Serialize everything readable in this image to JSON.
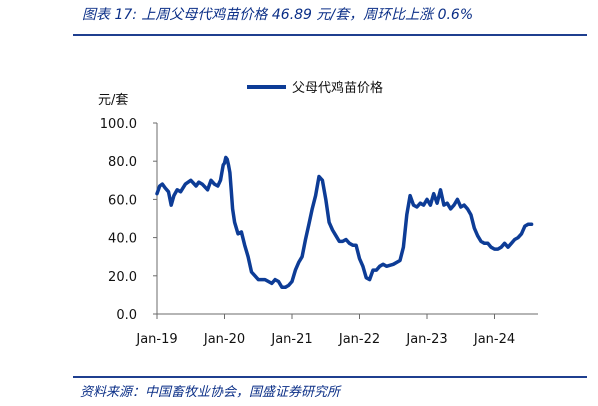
{
  "header": {
    "title": "图表 17: 上周父母代鸡苗价格 46.89 元/套，周环比上涨 0.6%"
  },
  "footer": {
    "source": "资料来源：中国畜牧业协会，国盛证券研究所"
  },
  "chart_data": {
    "type": "line",
    "title": "",
    "ylabel": "元/套",
    "xlabel": "",
    "ylim": [
      0,
      100
    ],
    "yticks": [
      "0.0",
      "20.0",
      "40.0",
      "60.0",
      "80.0",
      "100.0"
    ],
    "xticks": [
      "Jan-19",
      "Jan-20",
      "Jan-21",
      "Jan-22",
      "Jan-23",
      "Jan-24"
    ],
    "grid": false,
    "legend_position": "top-center",
    "line_color": "#0d3c96",
    "series": [
      {
        "name": "父母代鸡苗价格",
        "x": [
          2019.0,
          2019.04,
          2019.08,
          2019.12,
          2019.17,
          2019.21,
          2019.25,
          2019.3,
          2019.35,
          2019.42,
          2019.5,
          2019.58,
          2019.62,
          2019.67,
          2019.75,
          2019.8,
          2019.85,
          2019.9,
          2019.94,
          2019.98,
          2020.0,
          2020.02,
          2020.04,
          2020.06,
          2020.08,
          2020.1,
          2020.12,
          2020.15,
          2020.2,
          2020.25,
          2020.3,
          2020.35,
          2020.4,
          2020.5,
          2020.6,
          2020.7,
          2020.75,
          2020.8,
          2020.85,
          2020.9,
          2020.95,
          2021.0,
          2021.05,
          2021.1,
          2021.15,
          2021.2,
          2021.25,
          2021.3,
          2021.35,
          2021.4,
          2021.45,
          2021.5,
          2021.55,
          2021.6,
          2021.65,
          2021.7,
          2021.75,
          2021.8,
          2021.85,
          2021.9,
          2021.95,
          2022.0,
          2022.05,
          2022.1,
          2022.15,
          2022.2,
          2022.25,
          2022.3,
          2022.35,
          2022.4,
          2022.5,
          2022.6,
          2022.65,
          2022.7,
          2022.75,
          2022.8,
          2022.85,
          2022.9,
          2022.95,
          2023.0,
          2023.05,
          2023.1,
          2023.15,
          2023.2,
          2023.25,
          2023.3,
          2023.35,
          2023.4,
          2023.45,
          2023.5,
          2023.55,
          2023.6,
          2023.65,
          2023.7,
          2023.75,
          2023.8,
          2023.85,
          2023.9,
          2023.95,
          2024.0,
          2024.05,
          2024.1,
          2024.15,
          2024.2,
          2024.25,
          2024.3,
          2024.35,
          2024.4,
          2024.45,
          2024.5,
          2024.55
        ],
        "y": [
          63,
          67,
          68,
          66,
          64,
          57,
          62,
          65,
          64,
          68,
          70,
          67,
          69,
          68,
          65,
          70,
          68,
          67,
          70,
          78,
          79,
          82,
          81,
          78,
          74,
          65,
          55,
          48,
          42,
          43,
          36,
          30,
          22,
          18,
          18,
          16,
          18,
          17,
          14,
          14,
          15,
          17,
          23,
          27,
          30,
          39,
          47,
          55,
          62,
          72,
          70,
          60,
          48,
          44,
          41,
          38,
          38,
          39,
          37,
          36,
          36,
          29,
          25,
          19,
          18,
          23,
          23,
          25,
          26,
          25,
          26,
          28,
          35,
          52,
          62,
          57,
          56,
          58,
          57,
          60,
          57,
          63,
          58,
          65,
          57,
          58,
          55,
          57,
          60,
          56,
          57,
          55,
          52,
          45,
          41,
          38,
          37,
          37,
          35,
          34,
          34,
          35,
          37,
          35,
          37,
          39,
          40,
          42,
          46,
          47,
          47
        ]
      }
    ]
  },
  "axis_range": {
    "x_min": 2019.0,
    "x_max": 2024.55
  }
}
